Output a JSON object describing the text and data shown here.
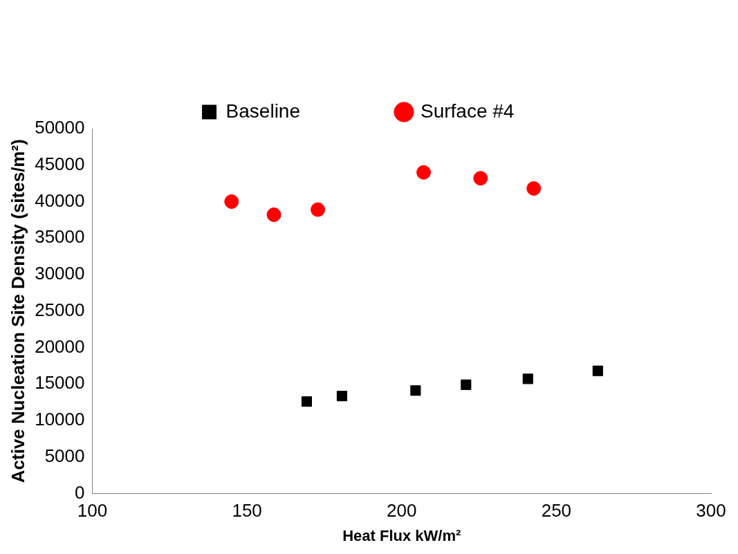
{
  "chart_data": {
    "type": "scatter",
    "xlabel": "Heat Flux kW/m²",
    "ylabel": "Active Nucleation Site Density (sites/m²)",
    "xlim": [
      100,
      300
    ],
    "xticks": [
      100,
      150,
      200,
      250,
      300
    ],
    "ylim": [
      0,
      50000
    ],
    "yticks": [
      0,
      5000,
      10000,
      15000,
      20000,
      25000,
      30000,
      35000,
      40000,
      45000,
      50000
    ],
    "grid": false,
    "legend": "top",
    "series": [
      {
        "name": "Baseline",
        "color": "#000000",
        "marker": "square",
        "x": [
          169.3,
          180.7,
          204.5,
          220.8,
          240.8,
          263.4
        ],
        "values": [
          12600,
          13350,
          14100,
          14900,
          15700,
          16800
        ]
      },
      {
        "name": "Surface #4",
        "color": "#ff0000",
        "marker": "circle",
        "x": [
          145,
          158.7,
          172.9,
          207.1,
          225.5,
          242.7
        ],
        "values": [
          40000,
          38200,
          38900,
          44000,
          43200,
          41800
        ]
      }
    ]
  }
}
